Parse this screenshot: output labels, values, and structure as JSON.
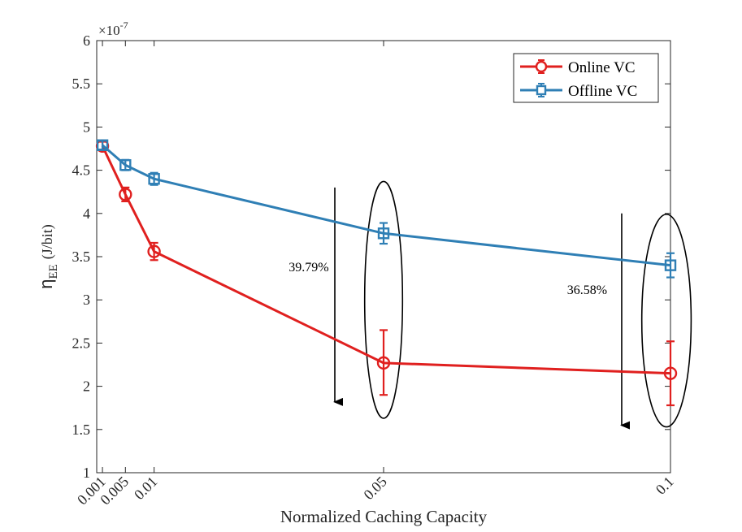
{
  "chart_data": {
    "type": "line",
    "xlabel": "Normalized Caching Capacity",
    "ylabel_main": "η",
    "ylabel_sub": "EE",
    "ylabel_unit": "(J/bit)",
    "exponent_base": "×10",
    "exponent_power": "-7",
    "x_ticks": [
      0.001,
      0.005,
      0.01,
      0.05,
      0.1
    ],
    "x_tick_labels": [
      "0.001",
      "0.005",
      "0.01",
      "0.05",
      "0.1"
    ],
    "y_ticks": [
      1,
      1.5,
      2,
      2.5,
      3,
      3.5,
      4,
      4.5,
      5,
      5.5,
      6
    ],
    "y_tick_labels": [
      "1",
      "1.5",
      "2",
      "2.5",
      "3",
      "3.5",
      "4",
      "4.5",
      "5",
      "5.5",
      "6"
    ],
    "xlim": [
      0,
      0.1
    ],
    "ylim": [
      1,
      6
    ],
    "grid": false,
    "legend_position": "top-right",
    "series": [
      {
        "name": "Online VC",
        "color": "#e0201f",
        "marker": "circle",
        "x": [
          0.001,
          0.005,
          0.01,
          0.05,
          0.1
        ],
        "y": [
          4.78,
          4.22,
          3.56,
          2.27,
          2.15
        ],
        "err_low": [
          0.05,
          0.08,
          0.1,
          0.37,
          0.37
        ],
        "err_high": [
          0.05,
          0.08,
          0.1,
          0.38,
          0.37
        ]
      },
      {
        "name": "Offline VC",
        "color": "#2f7fb5",
        "marker": "square",
        "x": [
          0.001,
          0.005,
          0.01,
          0.05,
          0.1
        ],
        "y": [
          4.79,
          4.56,
          4.4,
          3.77,
          3.4
        ],
        "err_low": [
          0.05,
          0.06,
          0.07,
          0.12,
          0.14
        ],
        "err_high": [
          0.05,
          0.06,
          0.07,
          0.12,
          0.14
        ]
      }
    ],
    "annotations": [
      {
        "text": "39.79%",
        "x": 0.0465,
        "y": 3.33
      },
      {
        "text": "36.58%",
        "x": 0.095,
        "y": 3.07
      }
    ],
    "arrows": [
      {
        "x": 0.0415,
        "y_from": 4.3,
        "y_to": 1.8
      },
      {
        "x": 0.0915,
        "y_from": 4.0,
        "y_to": 1.53
      }
    ],
    "ellipses": [
      {
        "cx": 0.05,
        "cy": 3.0,
        "rx": 0.0033,
        "ry": 1.37
      },
      {
        "cx": 0.0993,
        "cy": 2.76,
        "rx": 0.0043,
        "ry": 1.23
      }
    ]
  }
}
